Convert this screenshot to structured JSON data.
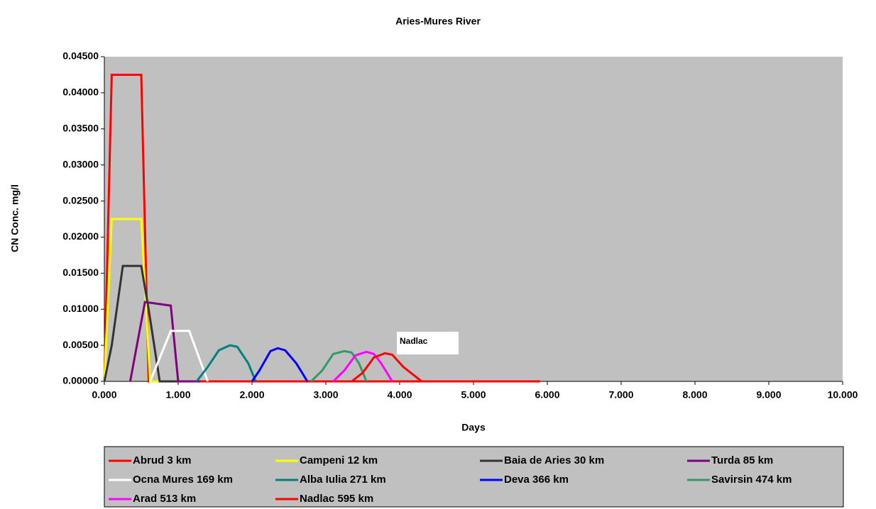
{
  "chart_data": {
    "type": "line",
    "title": "Aries-Mures River",
    "xlabel": "Days",
    "ylabel": "CN Conc. mg/l",
    "xlim": [
      0,
      10
    ],
    "ylim": [
      0,
      0.045
    ],
    "grid": false,
    "legend": "bottom",
    "xticks": [
      {
        "value": 0,
        "label": "0.000"
      },
      {
        "value": 1,
        "label": "1.000"
      },
      {
        "value": 2,
        "label": "2.000"
      },
      {
        "value": 3,
        "label": "3.000"
      },
      {
        "value": 4,
        "label": "4.000"
      },
      {
        "value": 5,
        "label": "5.000"
      },
      {
        "value": 6,
        "label": "6.000"
      },
      {
        "value": 7,
        "label": "7.000"
      },
      {
        "value": 8,
        "label": "8.000"
      },
      {
        "value": 9,
        "label": "9.000"
      },
      {
        "value": 10,
        "label": "10.000"
      }
    ],
    "yticks": [
      {
        "value": 0,
        "label": "0.00000"
      },
      {
        "value": 0.005,
        "label": "0.00500"
      },
      {
        "value": 0.01,
        "label": "0.01000"
      },
      {
        "value": 0.015,
        "label": "0.01500"
      },
      {
        "value": 0.02,
        "label": "0.02000"
      },
      {
        "value": 0.025,
        "label": "0.02500"
      },
      {
        "value": 0.03,
        "label": "0.03000"
      },
      {
        "value": 0.035,
        "label": "0.03500"
      },
      {
        "value": 0.04,
        "label": "0.04000"
      },
      {
        "value": 0.045,
        "label": "0.04500"
      }
    ],
    "annotation": {
      "text": "Nadlac",
      "x": 4.0,
      "y": 0.0055
    },
    "series": [
      {
        "name": "Abrud 3 km",
        "color": "#ff0000",
        "x": [
          0,
          0.1,
          0.5,
          0.6,
          5.9
        ],
        "values": [
          0,
          0.0425,
          0.0425,
          0,
          0
        ]
      },
      {
        "name": "Campeni 12 km",
        "color": "#ffff00",
        "x": [
          0,
          0.1,
          0.5,
          0.62,
          1.0
        ],
        "values": [
          0,
          0.0225,
          0.0225,
          0,
          0
        ]
      },
      {
        "name": "Baia de Aries 30 km",
        "color": "#333333",
        "x": [
          0,
          0.1,
          0.25,
          0.5,
          0.6,
          0.75,
          1.0
        ],
        "values": [
          0,
          0.005,
          0.016,
          0.016,
          0.01,
          0,
          0
        ]
      },
      {
        "name": "Turda 85 km",
        "color": "#800080",
        "x": [
          0.35,
          0.55,
          0.9,
          1.0,
          1.3
        ],
        "values": [
          0,
          0.011,
          0.0105,
          0,
          0
        ]
      },
      {
        "name": "Ocna Mures 169 km",
        "color": "#ffffff",
        "x": [
          0.62,
          0.9,
          1.15,
          1.4
        ],
        "values": [
          0,
          0.007,
          0.007,
          0
        ]
      },
      {
        "name": "Alba Iulia 271 km",
        "color": "#008080",
        "x": [
          1.25,
          1.4,
          1.55,
          1.7,
          1.8,
          1.95,
          2.05
        ],
        "values": [
          0,
          0.002,
          0.0043,
          0.005,
          0.0048,
          0.0025,
          0
        ]
      },
      {
        "name": "Deva 366 km",
        "color": "#0000ff",
        "x": [
          2.0,
          2.1,
          2.25,
          2.35,
          2.45,
          2.6,
          2.75
        ],
        "values": [
          0,
          0.0015,
          0.0042,
          0.0046,
          0.0043,
          0.0025,
          0
        ]
      },
      {
        "name": "Savirsin 474 km",
        "color": "#339966",
        "x": [
          2.8,
          2.95,
          3.1,
          3.25,
          3.35,
          3.45,
          3.55
        ],
        "values": [
          0,
          0.0015,
          0.0038,
          0.0042,
          0.004,
          0.0025,
          0
        ]
      },
      {
        "name": "Arad 513 km",
        "color": "#ff00ff",
        "x": [
          3.1,
          3.25,
          3.4,
          3.55,
          3.65,
          3.75,
          3.9
        ],
        "values": [
          0,
          0.0015,
          0.0036,
          0.0041,
          0.0038,
          0.0025,
          0
        ]
      },
      {
        "name": "Nadlac 595 km",
        "color": "#ff0000",
        "x": [
          3.35,
          3.5,
          3.65,
          3.8,
          3.9,
          4.05,
          4.3,
          5.9
        ],
        "values": [
          0,
          0.0012,
          0.0033,
          0.0039,
          0.0037,
          0.002,
          0,
          0
        ]
      }
    ]
  }
}
